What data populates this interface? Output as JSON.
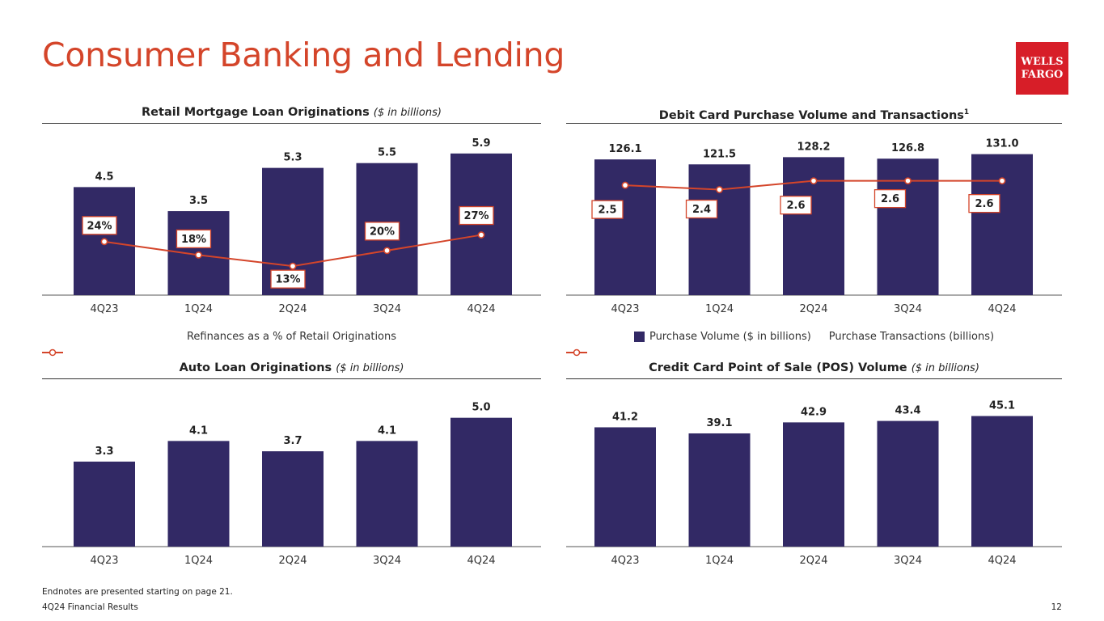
{
  "page": {
    "title": "Consumer Banking and Lending",
    "logo_line1": "WELLS",
    "logo_line2": "FARGO",
    "footnote": "Endnotes are presented starting on page 21.",
    "footer_left": "4Q24 Financial Results",
    "page_number": "12"
  },
  "colors": {
    "bar": "#322965",
    "line": "#d4452a",
    "title": "#d4452a",
    "logo": "#d71e28"
  },
  "charts": {
    "mortgage": {
      "heading": "Retail Mortgage Loan Originations",
      "subheading": "($ in billions)",
      "legend_line": "Refinances as a % of Retail Originations"
    },
    "debit": {
      "heading": "Debit Card Purchase Volume and Transactions",
      "superscript": "1",
      "legend_bar": "Purchase Volume ($ in billions)",
      "legend_line": "Purchase Transactions (billions)"
    },
    "auto": {
      "heading": "Auto Loan Originations",
      "subheading": "($ in billions)"
    },
    "credit": {
      "heading": "Credit Card Point of Sale (POS) Volume",
      "subheading": "($ in billions)"
    }
  },
  "chart_data": [
    {
      "id": "mortgage",
      "type": "bar",
      "categories": [
        "4Q23",
        "1Q24",
        "2Q24",
        "3Q24",
        "4Q24"
      ],
      "values": [
        4.5,
        3.5,
        5.3,
        5.5,
        5.9
      ],
      "value_labels": [
        "4.5",
        "3.5",
        "5.3",
        "5.5",
        "5.9"
      ],
      "ylim": [
        0,
        6.5
      ],
      "line_series": {
        "name": "Refinances as a % of Retail Originations",
        "values": [
          24,
          18,
          13,
          20,
          27
        ],
        "labels": [
          "24%",
          "18%",
          "13%",
          "20%",
          "27%"
        ],
        "ylim": [
          0,
          70
        ]
      }
    },
    {
      "id": "debit",
      "type": "bar",
      "categories": [
        "4Q23",
        "1Q24",
        "2Q24",
        "3Q24",
        "4Q24"
      ],
      "values": [
        126.1,
        121.5,
        128.2,
        126.8,
        131.0
      ],
      "value_labels": [
        "126.1",
        "121.5",
        "128.2",
        "126.8",
        "131.0"
      ],
      "ylim": [
        0,
        145
      ],
      "line_series": {
        "name": "Purchase Transactions (billions)",
        "values": [
          2.5,
          2.4,
          2.6,
          2.6,
          2.6
        ],
        "labels": [
          "2.5",
          "2.4",
          "2.6",
          "2.6",
          "2.6"
        ],
        "ylim": [
          0,
          3.55
        ]
      }
    },
    {
      "id": "auto",
      "type": "bar",
      "categories": [
        "4Q23",
        "1Q24",
        "2Q24",
        "3Q24",
        "4Q24"
      ],
      "values": [
        3.3,
        4.1,
        3.7,
        4.1,
        5.0
      ],
      "value_labels": [
        "3.3",
        "4.1",
        "3.7",
        "4.1",
        "5.0"
      ],
      "ylim": [
        0,
        5.9
      ]
    },
    {
      "id": "credit",
      "type": "bar",
      "categories": [
        "4Q23",
        "1Q24",
        "2Q24",
        "3Q24",
        "4Q24"
      ],
      "values": [
        41.2,
        39.1,
        42.9,
        43.4,
        45.1
      ],
      "value_labels": [
        "41.2",
        "39.1",
        "42.9",
        "43.4",
        "45.1"
      ],
      "ylim": [
        0,
        52.5
      ]
    }
  ]
}
